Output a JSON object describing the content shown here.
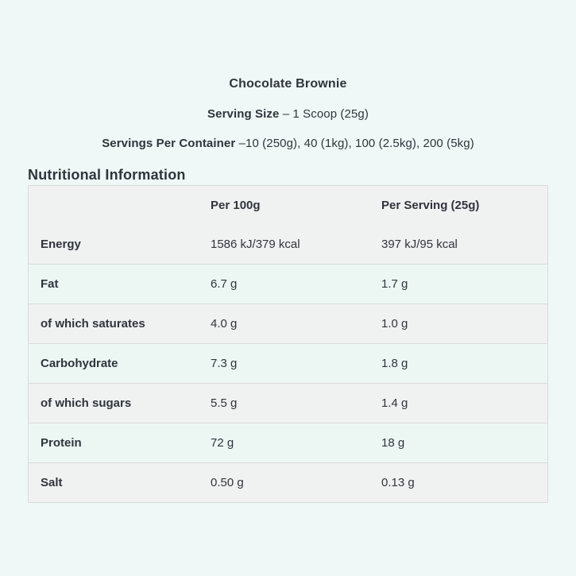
{
  "page": {
    "background_color": "#eff8f6",
    "text_color": "#30343d"
  },
  "product": {
    "title": "Chocolate Brownie",
    "serving_size_label": "Serving Size",
    "serving_size_value": "– 1 Scoop (25g)",
    "servings_per_container_label": "Servings Per Container",
    "servings_per_container_value": "–10 (250g), 40 (1kg), 100 (2.5kg), 200 (5kg)"
  },
  "section": {
    "heading": "Nutritional Information"
  },
  "table": {
    "columns": [
      "",
      "Per 100g",
      "Per Serving (25g)"
    ],
    "rows": [
      {
        "label": "Energy",
        "per_100g": "1586 kJ/379 kcal",
        "per_serving": "397 kJ/95 kcal"
      },
      {
        "label": "Fat",
        "per_100g": "6.7 g",
        "per_serving": "1.7 g"
      },
      {
        "label": "of which saturates",
        "per_100g": "4.0 g",
        "per_serving": "1.0 g"
      },
      {
        "label": "Carbohydrate",
        "per_100g": "7.3 g",
        "per_serving": "1.8 g"
      },
      {
        "label": "of which sugars",
        "per_100g": "5.5 g",
        "per_serving": "1.4 g"
      },
      {
        "label": "Protein",
        "per_100g": "72 g",
        "per_serving": "18 g"
      },
      {
        "label": "Salt",
        "per_100g": "0.50 g",
        "per_serving": "0.13 g"
      }
    ],
    "colors": {
      "row_gray": "#f0f1f1",
      "row_mint": "#ecf7f4",
      "border": "#d9dcdb"
    }
  }
}
